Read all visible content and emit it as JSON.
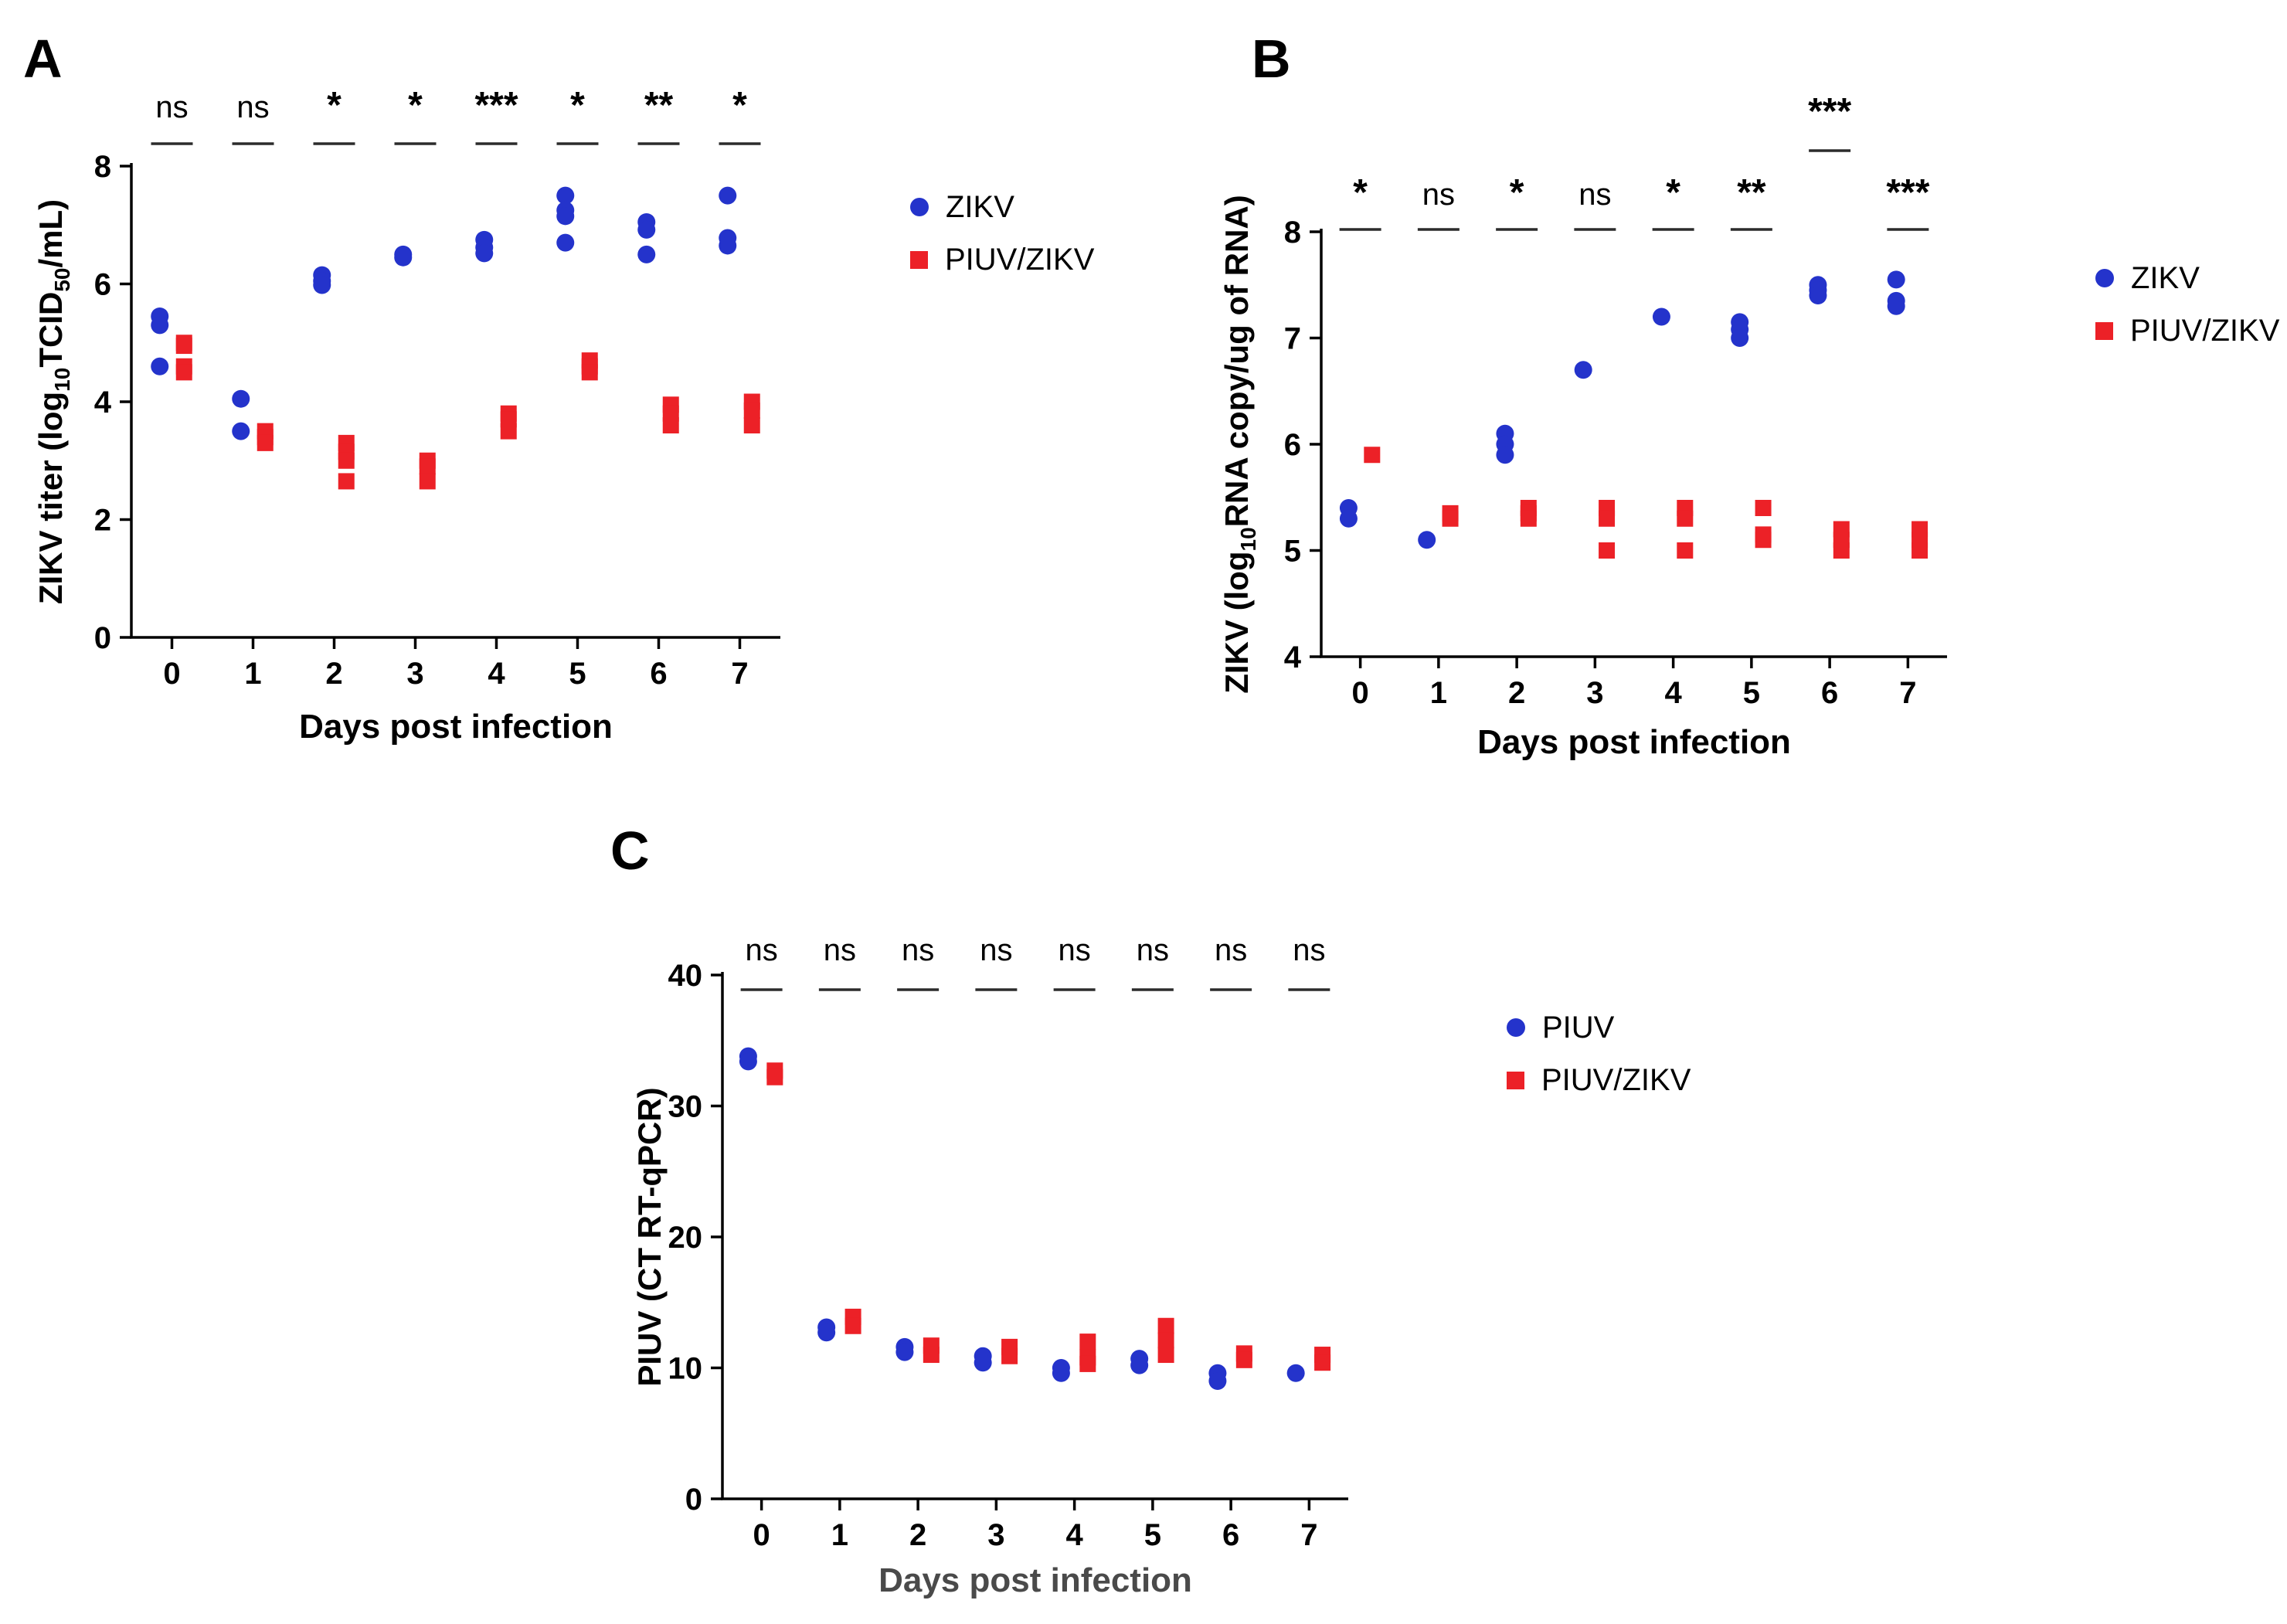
{
  "figure": {
    "background": "#ffffff",
    "colors": {
      "blue": "#2433cb",
      "red": "#ec2127",
      "axis": "#000000",
      "sig_line": "#2b2b2b"
    }
  },
  "chart_data": [
    {
      "id": "A",
      "panel_label": "A",
      "type": "scatter",
      "xlabel": "Days post infection",
      "ylabel_parts": [
        {
          "text": "ZIKV titer (log"
        },
        {
          "text": "10",
          "sub": true
        },
        {
          "text": "TCID"
        },
        {
          "text": "50",
          "sub": true
        },
        {
          "text": "/mL)"
        }
      ],
      "xlim": [
        -0.5,
        7.5
      ],
      "ylim": [
        0,
        8
      ],
      "xticks": [
        0,
        1,
        2,
        3,
        4,
        5,
        6,
        7
      ],
      "yticks": [
        0,
        2,
        4,
        6,
        8
      ],
      "grid": false,
      "legend_position": "right",
      "significance": [
        "ns",
        "ns",
        "*",
        "*",
        "***",
        "*",
        "**",
        "*"
      ],
      "sig_raised": [
        false,
        false,
        false,
        false,
        false,
        false,
        false,
        false
      ],
      "legend": [
        {
          "label": "ZIKV",
          "marker": "circle",
          "color": "#2433cb"
        },
        {
          "label": "PIUV/ZIKV",
          "marker": "square",
          "color": "#ec2127"
        }
      ],
      "series": [
        {
          "name": "ZIKV",
          "marker": "circle",
          "color": "#2433cb",
          "x_offset": -0.15,
          "points": [
            [
              0,
              5.45
            ],
            [
              0,
              5.3
            ],
            [
              0,
              4.6
            ],
            [
              1,
              4.05
            ],
            [
              1,
              3.5
            ],
            [
              2,
              6.15
            ],
            [
              2,
              6.05
            ],
            [
              2,
              5.98
            ],
            [
              3,
              6.5
            ],
            [
              3,
              6.45
            ],
            [
              4,
              6.75
            ],
            [
              4,
              6.62
            ],
            [
              4,
              6.52
            ],
            [
              5,
              7.5
            ],
            [
              5,
              7.25
            ],
            [
              5,
              7.15
            ],
            [
              5,
              6.7
            ],
            [
              6,
              7.05
            ],
            [
              6,
              6.92
            ],
            [
              6,
              6.5
            ],
            [
              7,
              7.5
            ],
            [
              7,
              6.78
            ],
            [
              7,
              6.65
            ]
          ]
        },
        {
          "name": "PIUV/ZIKV",
          "marker": "square",
          "color": "#ec2127",
          "x_offset": 0.15,
          "points": [
            [
              0,
              5.0
            ],
            [
              0,
              4.95
            ],
            [
              0,
              4.6
            ],
            [
              0,
              4.5
            ],
            [
              1,
              3.5
            ],
            [
              1,
              3.4
            ],
            [
              1,
              3.3
            ],
            [
              2,
              3.3
            ],
            [
              2,
              3.15
            ],
            [
              2,
              3.0
            ],
            [
              2,
              2.65
            ],
            [
              3,
              3.0
            ],
            [
              3,
              2.9
            ],
            [
              3,
              2.65
            ],
            [
              4,
              3.8
            ],
            [
              4,
              3.7
            ],
            [
              4,
              3.5
            ],
            [
              5,
              4.7
            ],
            [
              5,
              4.6
            ],
            [
              5,
              4.5
            ],
            [
              6,
              3.95
            ],
            [
              6,
              3.8
            ],
            [
              6,
              3.6
            ],
            [
              7,
              4.0
            ],
            [
              7,
              3.85
            ],
            [
              7,
              3.6
            ]
          ]
        }
      ]
    },
    {
      "id": "B",
      "panel_label": "B",
      "type": "scatter",
      "xlabel": "Days post infection",
      "ylabel_parts": [
        {
          "text": "ZIKV (log"
        },
        {
          "text": "10",
          "sub": true
        },
        {
          "text": "RNA copy/ug of RNA)"
        }
      ],
      "xlim": [
        -0.5,
        7.5
      ],
      "ylim": [
        4,
        8
      ],
      "xticks": [
        0,
        1,
        2,
        3,
        4,
        5,
        6,
        7
      ],
      "yticks": [
        4,
        5,
        6,
        7,
        8
      ],
      "grid": false,
      "legend_position": "right",
      "significance": [
        "*",
        "ns",
        "*",
        "ns",
        "*",
        "**",
        "***",
        "***"
      ],
      "sig_raised": [
        false,
        false,
        false,
        false,
        false,
        false,
        true,
        false
      ],
      "legend": [
        {
          "label": "ZIKV",
          "marker": "circle",
          "color": "#2433cb"
        },
        {
          "label": "PIUV/ZIKV",
          "marker": "square",
          "color": "#ec2127"
        }
      ],
      "series": [
        {
          "name": "ZIKV",
          "marker": "circle",
          "color": "#2433cb",
          "x_offset": -0.15,
          "points": [
            [
              0,
              5.4
            ],
            [
              0,
              5.3
            ],
            [
              1,
              5.1
            ],
            [
              2,
              6.1
            ],
            [
              2,
              6.0
            ],
            [
              2,
              5.9
            ],
            [
              3,
              6.7
            ],
            [
              4,
              7.2
            ],
            [
              5,
              7.15
            ],
            [
              5,
              7.08
            ],
            [
              5,
              7.0
            ],
            [
              6,
              7.5
            ],
            [
              6,
              7.45
            ],
            [
              6,
              7.4
            ],
            [
              7,
              7.55
            ],
            [
              7,
              7.35
            ],
            [
              7,
              7.3
            ]
          ]
        },
        {
          "name": "PIUV/ZIKV",
          "marker": "square",
          "color": "#ec2127",
          "x_offset": 0.15,
          "points": [
            [
              0,
              5.9
            ],
            [
              1,
              5.35
            ],
            [
              1,
              5.3
            ],
            [
              2,
              5.4
            ],
            [
              2,
              5.35
            ],
            [
              2,
              5.3
            ],
            [
              3,
              5.4
            ],
            [
              3,
              5.3
            ],
            [
              3,
              5.0
            ],
            [
              4,
              5.4
            ],
            [
              4,
              5.3
            ],
            [
              4,
              5.0
            ],
            [
              5,
              5.4
            ],
            [
              5,
              5.15
            ],
            [
              5,
              5.1
            ],
            [
              6,
              5.2
            ],
            [
              6,
              5.1
            ],
            [
              6,
              5.0
            ],
            [
              7,
              5.2
            ],
            [
              7,
              5.1
            ],
            [
              7,
              5.0
            ]
          ]
        }
      ]
    },
    {
      "id": "C",
      "panel_label": "C",
      "type": "scatter",
      "xlabel": "Days post infection",
      "ylabel_parts": [
        {
          "text": "PIUV (CT RT-qPCR)"
        }
      ],
      "xlim": [
        -0.5,
        7.5
      ],
      "ylim": [
        0,
        40
      ],
      "xticks": [
        0,
        1,
        2,
        3,
        4,
        5,
        6,
        7
      ],
      "yticks": [
        0,
        10,
        20,
        30,
        40
      ],
      "grid": false,
      "legend_position": "right",
      "significance": [
        "ns",
        "ns",
        "ns",
        "ns",
        "ns",
        "ns",
        "ns",
        "ns"
      ],
      "sig_raised": [
        false,
        false,
        false,
        false,
        false,
        false,
        false,
        false
      ],
      "legend": [
        {
          "label": "PIUV",
          "marker": "circle",
          "color": "#2433cb"
        },
        {
          "label": "PIUV/ZIKV",
          "marker": "square",
          "color": "#ec2127"
        }
      ],
      "series": [
        {
          "name": "PIUV",
          "marker": "circle",
          "color": "#2433cb",
          "x_offset": -0.17,
          "points": [
            [
              0,
              33.8
            ],
            [
              0,
              33.4
            ],
            [
              1,
              13.1
            ],
            [
              1,
              12.7
            ],
            [
              2,
              11.6
            ],
            [
              2,
              11.2
            ],
            [
              3,
              10.9
            ],
            [
              3,
              10.4
            ],
            [
              4,
              10.0
            ],
            [
              4,
              9.6
            ],
            [
              5,
              10.7
            ],
            [
              5,
              10.2
            ],
            [
              6,
              9.6
            ],
            [
              6,
              9.0
            ],
            [
              7,
              9.6
            ]
          ]
        },
        {
          "name": "PIUV/ZIKV",
          "marker": "square",
          "color": "#ec2127",
          "x_offset": 0.17,
          "points": [
            [
              0,
              32.7
            ],
            [
              0,
              32.2
            ],
            [
              1,
              13.9
            ],
            [
              1,
              13.2
            ],
            [
              2,
              11.7
            ],
            [
              2,
              11.0
            ],
            [
              3,
              11.6
            ],
            [
              3,
              10.9
            ],
            [
              4,
              12.0
            ],
            [
              4,
              10.8
            ],
            [
              4,
              10.3
            ],
            [
              5,
              13.2
            ],
            [
              5,
              12.1
            ],
            [
              5,
              11.0
            ],
            [
              6,
              11.1
            ],
            [
              6,
              10.6
            ],
            [
              7,
              11.0
            ],
            [
              7,
              10.4
            ]
          ]
        }
      ]
    }
  ]
}
